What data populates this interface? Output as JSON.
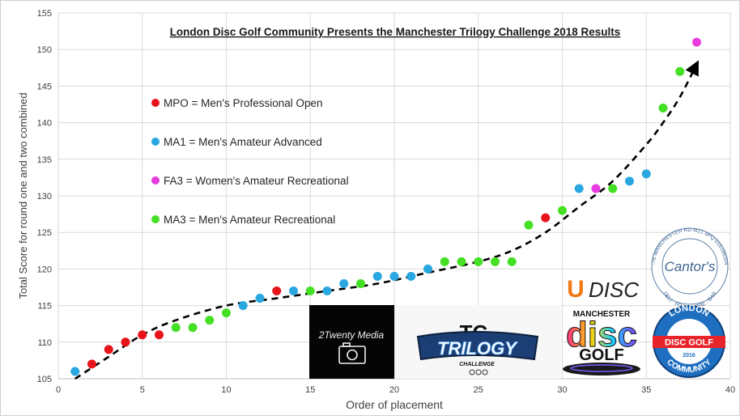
{
  "chart_data": {
    "type": "scatter",
    "title": "London Disc Golf Community Presents the Manchester Trilogy Challenge 2018 Results",
    "xlabel": "Order of placement",
    "ylabel": "Total Score for round one and two combined",
    "xlim": [
      0,
      40
    ],
    "ylim": [
      105,
      155
    ],
    "xticks": [
      0,
      5,
      10,
      15,
      20,
      25,
      30,
      35,
      40
    ],
    "yticks": [
      105,
      110,
      115,
      120,
      125,
      130,
      135,
      140,
      145,
      150,
      155
    ],
    "grid": true,
    "legend_position": "left-center",
    "series": [
      {
        "name": "MPO = Men's Professional Open",
        "color": "#e8141c",
        "points": [
          [
            2,
            107
          ],
          [
            3,
            109
          ],
          [
            4,
            110
          ],
          [
            5,
            111
          ],
          [
            6,
            111
          ],
          [
            13,
            117
          ],
          [
            29,
            127
          ]
        ]
      },
      {
        "name": "MA1 = Men's Amateur Advanced",
        "color": "#29a7e0",
        "points": [
          [
            1,
            106
          ],
          [
            11,
            115
          ],
          [
            12,
            116
          ],
          [
            14,
            117
          ],
          [
            16,
            117
          ],
          [
            17,
            118
          ],
          [
            19,
            119
          ],
          [
            20,
            119
          ],
          [
            21,
            119
          ],
          [
            22,
            120
          ],
          [
            31,
            131
          ],
          [
            34,
            132
          ],
          [
            35,
            133
          ]
        ]
      },
      {
        "name": "FA3 = Women's Amateur Recreational",
        "color": "#e83be0",
        "points": [
          [
            32,
            131
          ],
          [
            38,
            151
          ]
        ]
      },
      {
        "name": "MA3 = Men's Amateur Recreational",
        "color": "#44e024",
        "points": [
          [
            7,
            112
          ],
          [
            8,
            112
          ],
          [
            9,
            113
          ],
          [
            10,
            114
          ],
          [
            15,
            117
          ],
          [
            18,
            118
          ],
          [
            23,
            121
          ],
          [
            24,
            121
          ],
          [
            25,
            121
          ],
          [
            26,
            121
          ],
          [
            27,
            121
          ],
          [
            28,
            126
          ],
          [
            30,
            128
          ],
          [
            33,
            131
          ],
          [
            36,
            142
          ],
          [
            37,
            147
          ]
        ]
      }
    ],
    "trendline": {
      "style": "dashed-arrow",
      "points": [
        [
          1,
          105
        ],
        [
          3,
          108
        ],
        [
          5,
          111
        ],
        [
          7,
          113
        ],
        [
          10,
          115
        ],
        [
          13,
          116
        ],
        [
          16,
          117
        ],
        [
          19,
          118
        ],
        [
          22,
          119.5
        ],
        [
          25,
          121
        ],
        [
          27,
          122.5
        ],
        [
          29,
          125
        ],
        [
          31,
          128.5
        ],
        [
          33,
          132
        ],
        [
          35,
          137
        ],
        [
          36,
          140
        ],
        [
          37,
          143.5
        ],
        [
          38,
          148
        ]
      ]
    }
  },
  "sponsors": {
    "twenty_media": "2Twenty Media",
    "trilogy_top": "TC",
    "trilogy_main": "TRILOGY",
    "trilogy_sub": "CHALLENGE",
    "udisc": "DISC",
    "udisc_u": "U",
    "manchester_top": "MANCHESTER",
    "manchester_disc": "disc",
    "manchester_golf": "GOLF",
    "cantors_name": "Cantor's",
    "cantors_ring_top": "72-76 MANCHESTER RD M21 9PQ 01618620404",
    "cantors_ring_bottom": "DELI · FOODSTORE · BAR",
    "ldgc_top": "LONDON",
    "ldgc_middle": "DISC GOLF",
    "ldgc_bottom": "COMMUNITY",
    "ldgc_year": "2016"
  },
  "colors": {
    "grid": "#d9d9d9",
    "axis_text": "#404040",
    "trend": "#000000"
  }
}
